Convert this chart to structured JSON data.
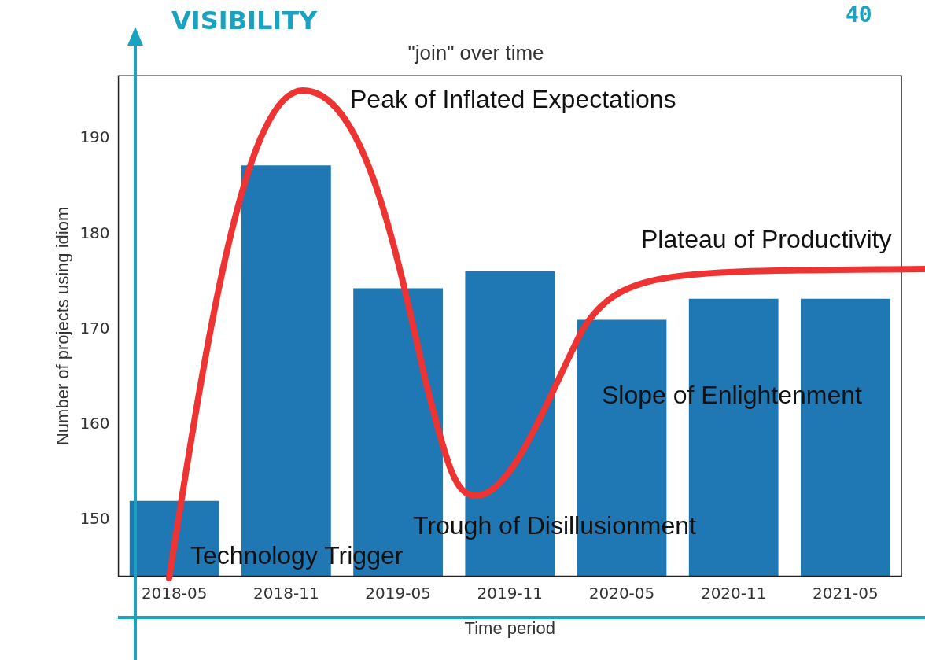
{
  "chart_data": {
    "type": "bar",
    "title": "\"join\" over time",
    "xlabel": "Time period",
    "ylabel": "Number of projects using idiom",
    "categories": [
      "2018-05",
      "2018-11",
      "2019-05",
      "2019-11",
      "2020-05",
      "2020-11",
      "2021-05"
    ],
    "values": [
      152,
      187.2,
      174.3,
      176.1,
      171,
      173.2,
      173.2
    ],
    "color": "#1f77b4",
    "ylim": [
      144.1,
      196.6
    ],
    "yticks": [
      150,
      160,
      170,
      180,
      190
    ],
    "grid": false,
    "annotations": [
      "VISIBILITY",
      "40",
      "Peak of Inflated Expectations",
      "Plateau of Productivity",
      "Slope of Enlightenment",
      "Trough of Disillusionment",
      "Technology Trigger"
    ]
  }
}
